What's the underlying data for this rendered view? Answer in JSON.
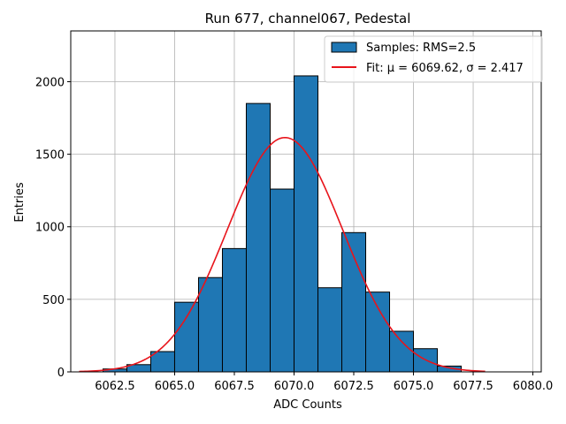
{
  "chart_data": {
    "type": "bar",
    "title": "Run 677, channel067, Pedestal",
    "xlabel": "ADC Counts",
    "ylabel": "Entries",
    "xlim": [
      6060.65,
      6080.35
    ],
    "ylim": [
      0,
      2350
    ],
    "xticks": [
      6062.5,
      6065.0,
      6067.5,
      6070.0,
      6072.5,
      6075.0,
      6077.5,
      6080.0
    ],
    "xtick_labels": [
      "6062.5",
      "6065.0",
      "6067.5",
      "6070.0",
      "6072.5",
      "6075.0",
      "6077.5",
      "6080.0"
    ],
    "yticks": [
      0,
      500,
      1000,
      1500,
      2000
    ],
    "ytick_labels": [
      "0",
      "500",
      "1000",
      "1500",
      "2000"
    ],
    "grid": true,
    "legend_position": "top-right",
    "bin_edges": [
      6062,
      6063,
      6064,
      6065,
      6066,
      6067,
      6068,
      6069,
      6070,
      6071,
      6072,
      6073,
      6074,
      6075,
      6076,
      6077
    ],
    "series": [
      {
        "name": "Samples: RMS=2.5",
        "kind": "histogram",
        "color": "#1f77b4",
        "values": [
          20,
          50,
          140,
          480,
          650,
          850,
          1850,
          1260,
          2040,
          580,
          960,
          550,
          280,
          160,
          40
        ]
      },
      {
        "name": "Fit: μ = 6069.62, σ = 2.417",
        "kind": "line",
        "color": "#e8141b",
        "mu": 6069.62,
        "sigma": 2.417,
        "amplitude": 1615,
        "x_range": [
          6061,
          6078
        ]
      }
    ],
    "legend": [
      {
        "label": "Samples: RMS=2.5",
        "swatch": "patch",
        "color": "#1f77b4"
      },
      {
        "label": "Fit: μ = 6069.62, σ = 2.417",
        "swatch": "line",
        "color": "#e8141b"
      }
    ]
  }
}
